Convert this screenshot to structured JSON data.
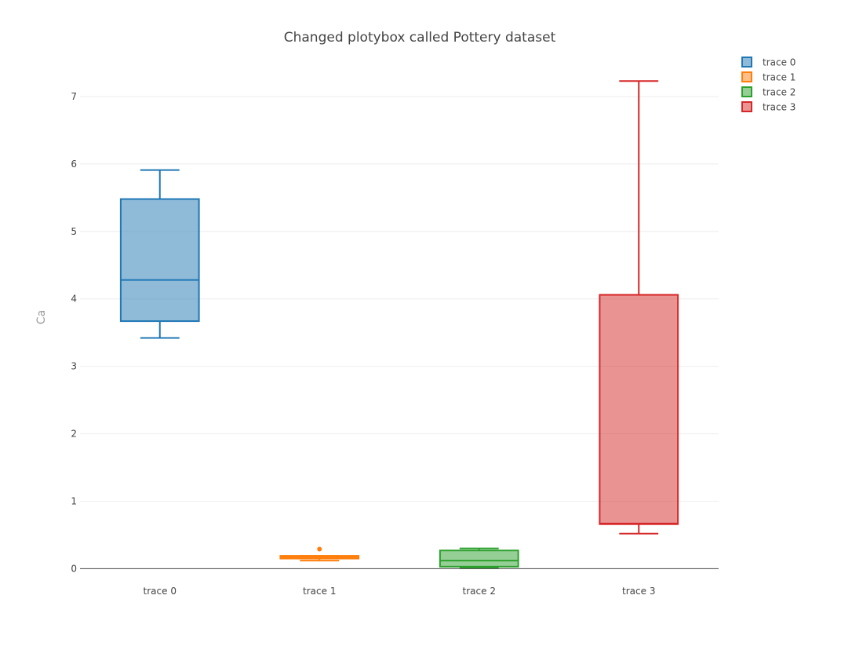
{
  "chart_data": {
    "type": "box",
    "title": "Changed plotybox called Pottery dataset",
    "xlabel": "",
    "ylabel": "Ca",
    "ylim": [
      -0.1,
      7.5
    ],
    "yticks": [
      0,
      1,
      2,
      3,
      4,
      5,
      6,
      7
    ],
    "grid": true,
    "legend_position": "top-right",
    "categories": [
      "trace 0",
      "trace 1",
      "trace 2",
      "trace 3"
    ],
    "series": [
      {
        "name": "trace 0",
        "color": "#1f77b4",
        "fill": "rgba(31,119,180,0.5)",
        "min": 3.42,
        "q1": 3.67,
        "median": 4.28,
        "q3": 5.48,
        "max": 5.91,
        "outliers": []
      },
      {
        "name": "trace 1",
        "color": "#ff7f0e",
        "fill": "rgba(255,127,14,0.5)",
        "min": 0.12,
        "q1": 0.15,
        "median": 0.17,
        "q3": 0.19,
        "max": 0.19,
        "outliers": [
          0.29
        ]
      },
      {
        "name": "trace 2",
        "color": "#2ca02c",
        "fill": "rgba(44,160,44,0.5)",
        "min": 0.01,
        "q1": 0.03,
        "median": 0.12,
        "q3": 0.27,
        "max": 0.3,
        "outliers": []
      },
      {
        "name": "trace 3",
        "color": "#d62728",
        "fill": "rgba(214,39,40,0.5)",
        "min": 0.52,
        "q1": 0.66,
        "median": 0.67,
        "q3": 4.06,
        "max": 7.23,
        "outliers": []
      }
    ]
  }
}
